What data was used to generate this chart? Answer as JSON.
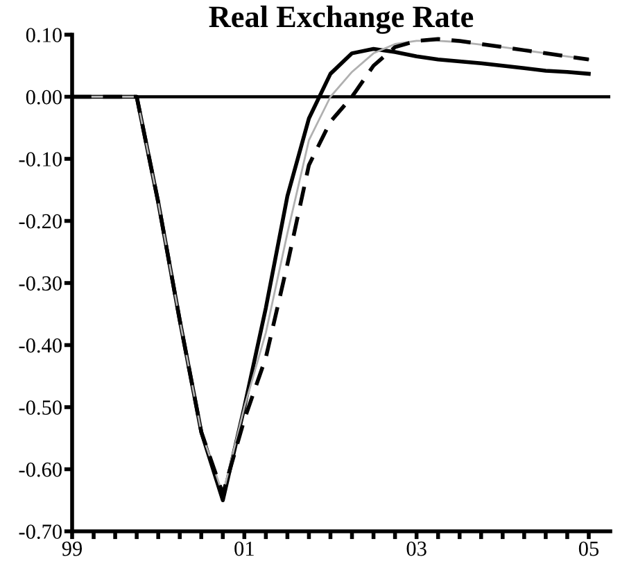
{
  "chart_data": {
    "type": "line",
    "title": "Real Exchange Rate",
    "x": [
      1999.0,
      1999.25,
      1999.5,
      1999.75,
      2000.0,
      2000.25,
      2000.5,
      2000.75,
      2001.0,
      2001.25,
      2001.5,
      2001.75,
      2002.0,
      2002.25,
      2002.5,
      2002.75,
      2003.0,
      2003.25,
      2003.5,
      2003.75,
      2004.0,
      2004.25,
      2004.5,
      2004.75,
      2005.0
    ],
    "series": [
      {
        "color": "#000000",
        "line_style": "solid",
        "values": [
          0,
          0,
          0,
          0,
          -0.17,
          -0.36,
          -0.54,
          -0.65,
          -0.5,
          -0.34,
          -0.16,
          -0.035,
          0.037,
          0.07,
          0.077,
          0.072,
          0.065,
          0.06,
          0.057,
          0.054,
          0.05,
          0.046,
          0.042,
          0.04,
          0.037
        ]
      },
      {
        "color": "#b0b0b0",
        "line_style": "solid",
        "values": [
          0,
          0,
          0,
          0,
          -0.17,
          -0.36,
          -0.54,
          -0.64,
          -0.5,
          -0.38,
          -0.22,
          -0.07,
          0.0,
          0.04,
          0.07,
          0.085,
          0.09,
          0.09,
          0.088,
          0.084,
          0.08,
          0.075,
          0.07,
          0.065,
          0.06
        ]
      },
      {
        "color": "#000000",
        "line_style": "dashed",
        "values": [
          0,
          0,
          0,
          0,
          -0.17,
          -0.36,
          -0.54,
          -0.64,
          -0.52,
          -0.42,
          -0.27,
          -0.11,
          -0.04,
          0.0,
          0.05,
          0.08,
          0.09,
          0.093,
          0.09,
          0.085,
          0.08,
          0.075,
          0.07,
          0.065,
          0.06
        ]
      }
    ],
    "xlim": [
      1999.0,
      2005.25
    ],
    "xticks": [
      {
        "value": 1999.0,
        "label": "99"
      },
      {
        "value": 1999.25,
        "label": null
      },
      {
        "value": 1999.5,
        "label": null
      },
      {
        "value": 1999.75,
        "label": null
      },
      {
        "value": 2000.0,
        "label": null
      },
      {
        "value": 2000.25,
        "label": null
      },
      {
        "value": 2000.5,
        "label": null
      },
      {
        "value": 2000.75,
        "label": null
      },
      {
        "value": 2001.0,
        "label": "01"
      },
      {
        "value": 2001.25,
        "label": null
      },
      {
        "value": 2001.5,
        "label": null
      },
      {
        "value": 2001.75,
        "label": null
      },
      {
        "value": 2002.0,
        "label": null
      },
      {
        "value": 2002.25,
        "label": null
      },
      {
        "value": 2002.5,
        "label": null
      },
      {
        "value": 2002.75,
        "label": null
      },
      {
        "value": 2003.0,
        "label": "03"
      },
      {
        "value": 2003.25,
        "label": null
      },
      {
        "value": 2003.5,
        "label": null
      },
      {
        "value": 2003.75,
        "label": null
      },
      {
        "value": 2004.0,
        "label": null
      },
      {
        "value": 2004.25,
        "label": null
      },
      {
        "value": 2004.5,
        "label": null
      },
      {
        "value": 2004.75,
        "label": null
      },
      {
        "value": 2005.0,
        "label": "05"
      }
    ],
    "ylim": [
      -0.7,
      0.1
    ],
    "yticks": [
      {
        "value": 0.1,
        "label": "0.10"
      },
      {
        "value": 0.0,
        "label": "0.00"
      },
      {
        "value": -0.1,
        "label": "-0.10"
      },
      {
        "value": -0.2,
        "label": "-0.20"
      },
      {
        "value": -0.3,
        "label": "-0.30"
      },
      {
        "value": -0.4,
        "label": "-0.40"
      },
      {
        "value": -0.5,
        "label": "-0.50"
      },
      {
        "value": -0.6,
        "label": "-0.60"
      },
      {
        "value": -0.7,
        "label": "-0.70"
      }
    ],
    "ref_lines": [
      {
        "axis": "y",
        "value": 0,
        "color": "#000000"
      }
    ],
    "grid": false,
    "legend": false,
    "marker": "none"
  }
}
